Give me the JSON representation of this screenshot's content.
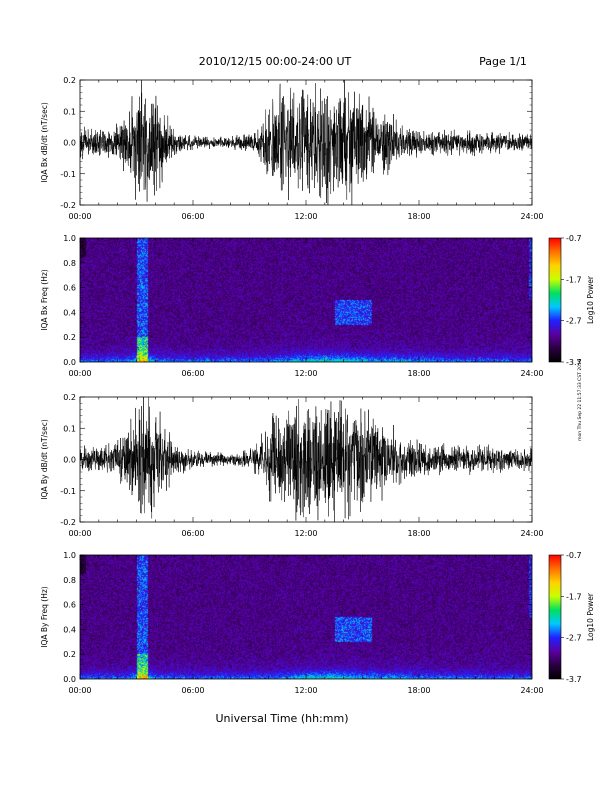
{
  "header": {
    "title": "2010/12/15   00:00-24:00 UT",
    "page": "Page 1/1"
  },
  "footer": {
    "xlabel": "Universal Time (hh:mm)",
    "side_note": "mon Thu Sep 22 11:57:33 CST 2016"
  },
  "colors": {
    "trace": "#000000",
    "colormap": [
      "#000000",
      "#2a0040",
      "#5a00a0",
      "#2020ff",
      "#00c8ff",
      "#00e060",
      "#c8ff00",
      "#ffd200",
      "#ff7000",
      "#ff0000"
    ]
  },
  "chart_data": [
    {
      "type": "line",
      "ylabel": "IQA Bx dB/dt (nT/sec)",
      "xlim": [
        0,
        24
      ],
      "ylim": [
        -0.2,
        0.2
      ],
      "xticks": [
        "00:00",
        "06:00",
        "12:00",
        "18:00",
        "24:00"
      ],
      "yticks": [
        "-0.2",
        "-0.1",
        "0.0",
        "0.1",
        "0.2"
      ],
      "envelope": {
        "hours": [
          0,
          1,
          2,
          2.7,
          3,
          3.5,
          4,
          4.5,
          5,
          6,
          7,
          8,
          9,
          9.5,
          10,
          10.5,
          11,
          12,
          12.5,
          13,
          13.5,
          14,
          14.5,
          15,
          16,
          16.5,
          17,
          18,
          19,
          20,
          21,
          22,
          23,
          24
        ],
        "amplitude": [
          0.05,
          0.05,
          0.06,
          0.12,
          0.2,
          0.2,
          0.18,
          0.1,
          0.04,
          0.025,
          0.02,
          0.02,
          0.03,
          0.06,
          0.15,
          0.2,
          0.2,
          0.2,
          0.2,
          0.2,
          0.2,
          0.2,
          0.2,
          0.18,
          0.12,
          0.09,
          0.06,
          0.05,
          0.04,
          0.04,
          0.04,
          0.035,
          0.03,
          0.03
        ]
      }
    },
    {
      "type": "heatmap",
      "ylabel": "IQA Bx Freq (Hz)",
      "xlim": [
        0,
        24
      ],
      "ylim": [
        0,
        1.0
      ],
      "xticks": [
        "00:00",
        "06:00",
        "12:00",
        "18:00",
        "24:00"
      ],
      "yticks": [
        "0.0",
        "0.2",
        "0.4",
        "0.6",
        "0.8",
        "1.0"
      ],
      "colorbar": {
        "label": "Log10 Power",
        "range": [
          -3.7,
          -0.7
        ],
        "ticks": [
          "-0.7",
          "-1.7",
          "-2.7",
          "-3.7"
        ]
      },
      "features": [
        {
          "hours": [
            3.0,
            3.6
          ],
          "freq": [
            0,
            1.0
          ],
          "level": 0.45
        },
        {
          "hours": [
            13.5,
            15.5
          ],
          "freq": [
            0.3,
            0.5
          ],
          "level": 0.4
        },
        {
          "hours": [
            23.8,
            24.0
          ],
          "freq": [
            0.5,
            1.0
          ],
          "level": 0.35
        }
      ]
    },
    {
      "type": "line",
      "ylabel": "IQA By dB/dt (nT/sec)",
      "xlim": [
        0,
        24
      ],
      "ylim": [
        -0.2,
        0.2
      ],
      "xticks": [
        "00:00",
        "06:00",
        "12:00",
        "18:00",
        "24:00"
      ],
      "yticks": [
        "-0.2",
        "-0.1",
        "0.0",
        "0.1",
        "0.2"
      ],
      "envelope": {
        "hours": [
          0,
          1,
          2,
          2.7,
          3,
          3.5,
          4,
          4.5,
          5,
          6,
          7,
          8,
          9,
          9.5,
          10,
          10.5,
          11,
          12,
          12.5,
          13,
          13.5,
          14,
          14.5,
          15,
          16,
          16.5,
          17,
          18,
          19,
          20,
          21,
          22,
          23,
          24
        ],
        "amplitude": [
          0.05,
          0.05,
          0.07,
          0.15,
          0.2,
          0.2,
          0.2,
          0.12,
          0.05,
          0.03,
          0.025,
          0.02,
          0.03,
          0.06,
          0.13,
          0.18,
          0.2,
          0.2,
          0.2,
          0.2,
          0.2,
          0.2,
          0.2,
          0.18,
          0.12,
          0.1,
          0.08,
          0.06,
          0.05,
          0.05,
          0.05,
          0.045,
          0.04,
          0.04
        ]
      }
    },
    {
      "type": "heatmap",
      "ylabel": "IQA By Freq (Hz)",
      "xlim": [
        0,
        24
      ],
      "ylim": [
        0,
        1.0
      ],
      "xticks": [
        "00:00",
        "06:00",
        "12:00",
        "18:00",
        "24:00"
      ],
      "yticks": [
        "0.0",
        "0.2",
        "0.4",
        "0.6",
        "0.8",
        "1.0"
      ],
      "colorbar": {
        "label": "Log10 Power",
        "range": [
          -3.7,
          -0.7
        ],
        "ticks": [
          "-0.7",
          "-1.7",
          "-2.7",
          "-3.7"
        ]
      },
      "features": [
        {
          "hours": [
            3.0,
            3.6
          ],
          "freq": [
            0,
            1.0
          ],
          "level": 0.45
        },
        {
          "hours": [
            13.5,
            15.5
          ],
          "freq": [
            0.3,
            0.5
          ],
          "level": 0.45
        },
        {
          "hours": [
            23.8,
            24.0
          ],
          "freq": [
            0.5,
            1.0
          ],
          "level": 0.35
        }
      ]
    }
  ]
}
